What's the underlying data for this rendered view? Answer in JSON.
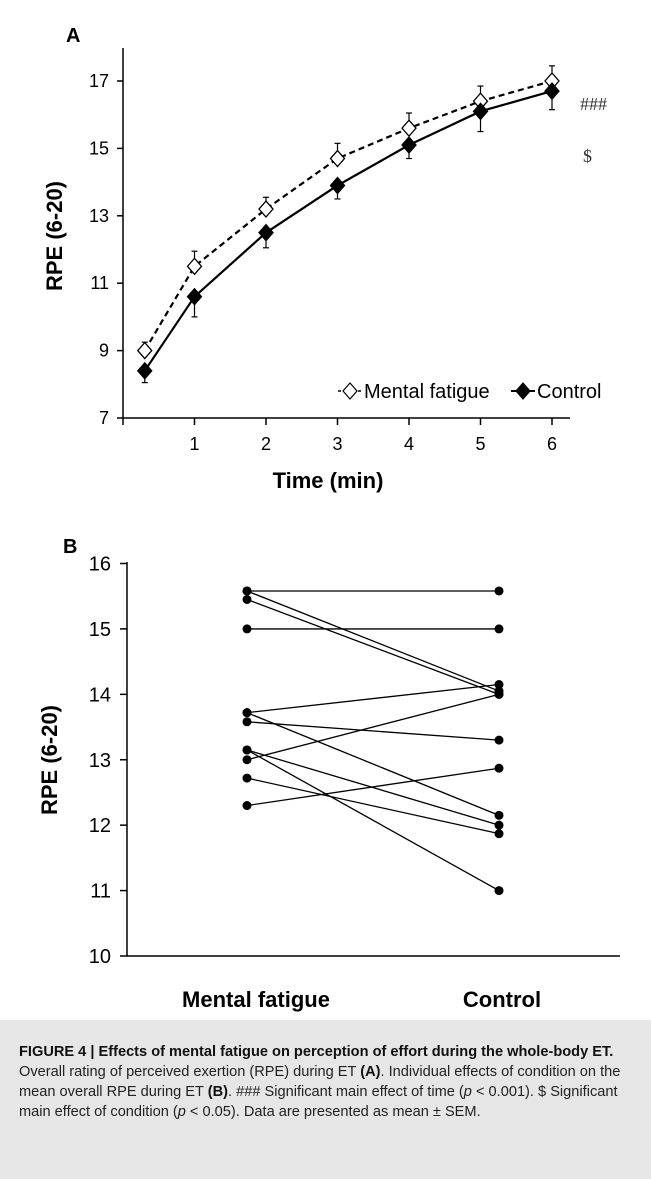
{
  "chart_data": [
    {
      "type": "line",
      "panel": "A",
      "xlabel": "Time (min)",
      "ylabel": "RPE (6-20)",
      "xlim": [
        0,
        7
      ],
      "ylim": [
        7,
        18
      ],
      "x_ticks": [
        1,
        2,
        3,
        4,
        5,
        6
      ],
      "y_ticks": [
        7,
        9,
        11,
        13,
        15,
        17
      ],
      "grid": false,
      "legend_position": "bottom-right",
      "series": [
        {
          "name": "Mental fatigue",
          "marker": "open-diamond",
          "line": "dashed",
          "x": [
            0.5,
            1,
            2,
            3,
            4,
            5,
            6
          ],
          "y": [
            9.0,
            11.5,
            13.2,
            14.7,
            15.6,
            16.4,
            17.0
          ],
          "error": [
            0.25,
            0.45,
            0.35,
            0.45,
            0.45,
            0.45,
            0.45
          ]
        },
        {
          "name": "Control",
          "marker": "filled-diamond",
          "line": "solid",
          "x": [
            0.5,
            1,
            2,
            3,
            4,
            5,
            6
          ],
          "y": [
            8.4,
            10.6,
            12.5,
            13.9,
            15.1,
            16.1,
            16.7
          ],
          "error": [
            0.35,
            0.6,
            0.45,
            0.4,
            0.4,
            0.6,
            0.55
          ]
        }
      ],
      "annotations": [
        "###",
        "$"
      ]
    },
    {
      "type": "scatter",
      "panel": "B",
      "ylabel": "RPE (6-20)",
      "categories": [
        "Mental fatigue",
        "Control"
      ],
      "ylim": [
        10,
        16.5
      ],
      "y_ticks": [
        10,
        11,
        12,
        13,
        14,
        15,
        16
      ],
      "grid": false,
      "pairs": [
        [
          15.58,
          15.58
        ],
        [
          15.58,
          14.05
        ],
        [
          15.45,
          14.0
        ],
        [
          15.0,
          15.0
        ],
        [
          13.72,
          14.15
        ],
        [
          13.72,
          12.15
        ],
        [
          13.58,
          13.3
        ],
        [
          13.15,
          12.0
        ],
        [
          13.15,
          11.0
        ],
        [
          13.0,
          14.0
        ],
        [
          12.72,
          11.87
        ],
        [
          12.3,
          12.87
        ]
      ]
    }
  ],
  "caption": {
    "heading": "FIGURE 4 | Effects of mental fatigue on perception of effort during the whole-body ET.",
    "s1": " Overall rating of perceived exertion (RPE) during ET ",
    "s1_ref": "(A)",
    "s2": ". Individual effects of condition on the mean overall RPE during ET ",
    "s2_ref": "(B)",
    "s3": ". ### Significant main effect of time (",
    "p1": "p",
    "s4": " < 0.001). $ Significant main effect of condition (",
    "p2": "p",
    "s5": " < 0.05). Data are presented as mean ± SEM."
  },
  "colors": {
    "ink": "#000000",
    "annotation": "#333333",
    "caption_bg": "#e6e6e6"
  }
}
